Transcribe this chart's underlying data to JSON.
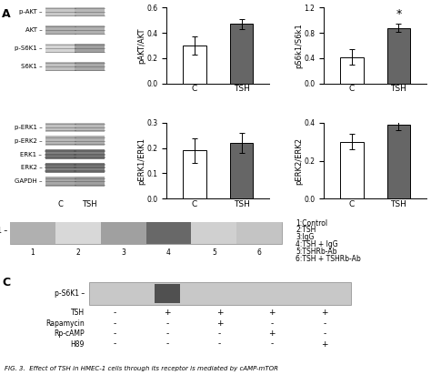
{
  "bar_charts": {
    "pAKT_AKT": {
      "ylabel": "pAKT/AKT",
      "ylim": [
        0,
        0.6
      ],
      "yticks": [
        0,
        0.2,
        0.4,
        0.6
      ],
      "categories": [
        "C",
        "TSH"
      ],
      "values": [
        0.3,
        0.47
      ],
      "errors": [
        0.07,
        0.04
      ],
      "colors": [
        "white",
        "#666666"
      ],
      "significant": false
    },
    "pS6k1_S6k1": {
      "ylabel": "pS6k1/S6k1",
      "ylim": [
        0,
        1.2
      ],
      "yticks": [
        0,
        0.4,
        0.8,
        1.2
      ],
      "categories": [
        "C",
        "TSH"
      ],
      "values": [
        0.42,
        0.88
      ],
      "errors": [
        0.12,
        0.06
      ],
      "colors": [
        "white",
        "#666666"
      ],
      "significant": true
    },
    "pERK1_ERK1": {
      "ylabel": "pERK1/ERK1",
      "ylim": [
        0,
        0.3
      ],
      "yticks": [
        0,
        0.1,
        0.2,
        0.3
      ],
      "categories": [
        "C",
        "TSH"
      ],
      "values": [
        0.19,
        0.22
      ],
      "errors": [
        0.05,
        0.04
      ],
      "colors": [
        "white",
        "#666666"
      ],
      "significant": false
    },
    "pERK2_ERK2": {
      "ylabel": "pERK2/ERK2",
      "ylim": [
        0,
        0.4
      ],
      "yticks": [
        0,
        0.2,
        0.4
      ],
      "categories": [
        "C",
        "TSH"
      ],
      "values": [
        0.3,
        0.39
      ],
      "errors": [
        0.04,
        0.03
      ],
      "colors": [
        "white",
        "#666666"
      ],
      "significant": false
    }
  },
  "blot_top_rows": [
    {
      "label": "p-AKT",
      "c_color": "#c8c8c8",
      "tsh_color": "#b8b8b8",
      "thick": false
    },
    {
      "label": "AKT",
      "c_color": "#b0b0b0",
      "tsh_color": "#b0b0b0",
      "thick": false
    },
    {
      "label": "p-S6K1",
      "c_color": "#d5d5d5",
      "tsh_color": "#a0a0a0",
      "thick": false
    },
    {
      "label": "S6K1",
      "c_color": "#c0c0c0",
      "tsh_color": "#a8a8a8",
      "thick": false
    }
  ],
  "blot_bot_rows": [
    {
      "label": "p-ERK1",
      "c_color": "#c0c0c0",
      "tsh_color": "#b8b8b8",
      "thick": false
    },
    {
      "label": "p-ERK2",
      "c_color": "#b8b8b8",
      "tsh_color": "#b0b0b0",
      "thick": false
    },
    {
      "label": "ERK1",
      "c_color": "#808080",
      "tsh_color": "#808080",
      "thick": true
    },
    {
      "label": "ERK2",
      "c_color": "#808080",
      "tsh_color": "#808080",
      "thick": true
    },
    {
      "label": "GAPDH",
      "c_color": "#a8a8a8",
      "tsh_color": "#a0a0a0",
      "thick": false
    }
  ],
  "panel_B_lanes": [
    "1",
    "2",
    "3",
    "4",
    "5",
    "6"
  ],
  "panel_B_lane_colors": [
    "#b0b0b0",
    "#d8d8d8",
    "#a0a0a0",
    "#686868",
    "#d0d0d0",
    "#c4c4c4"
  ],
  "panel_B_blot_bg": "#cacaca",
  "panel_B_legend": [
    "1:Control",
    "2:TSH",
    "3:IgG",
    "4:TSH + IgG",
    "5:TSHRb-Ab",
    "6:TSH + TSHRb-Ab"
  ],
  "panel_C_blot_bg": "#c8c8c8",
  "panel_C_band_color": "#505050",
  "panel_C_rows": [
    "TSH",
    "Rapamycin",
    "Rp-cAMP",
    "H89"
  ],
  "panel_C_signs": [
    [
      "-",
      "+",
      "+",
      "+",
      "+"
    ],
    [
      "-",
      "-",
      "+",
      "-",
      "-"
    ],
    [
      "-",
      "-",
      "-",
      "+",
      "-"
    ],
    [
      "-",
      "-",
      "-",
      "-",
      "+"
    ]
  ],
  "fig_caption": "FIG. 3.  Effect of TSH in HMEC-1 cells through its receptor is mediated by cAMP-mTOR"
}
